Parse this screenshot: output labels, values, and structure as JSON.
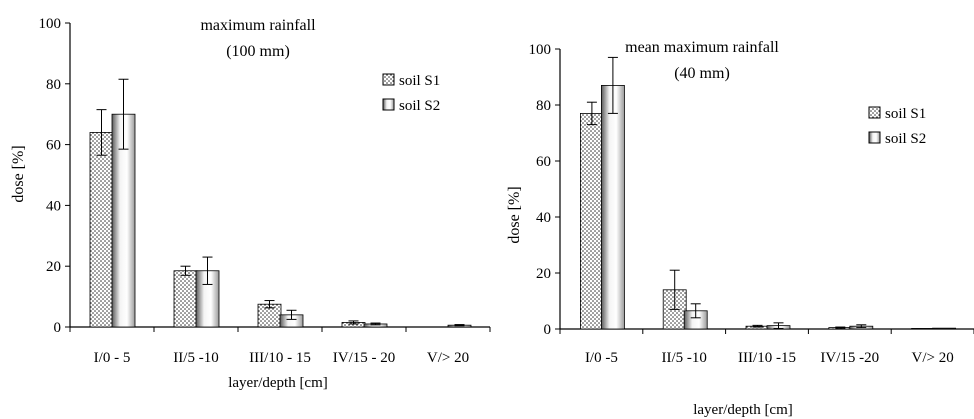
{
  "chart_data": [
    {
      "type": "bar",
      "title": "maximum rainfall",
      "subtitle": "(100 mm)",
      "xlabel": "layer/depth [cm]",
      "ylabel": "dose [%]",
      "ylim": [
        0,
        100
      ],
      "yticks": [
        0,
        20,
        40,
        60,
        80,
        100
      ],
      "categories": [
        "I/0 - 5",
        "II/5 -10",
        "III/10 - 15",
        "IV/15 - 20",
        "V/> 20"
      ],
      "series": [
        {
          "name": "soil S1",
          "pattern": "dotted",
          "values": [
            64,
            18.5,
            7.5,
            1.5,
            0
          ],
          "errors": [
            7.5,
            1.5,
            1.2,
            0.5,
            0
          ]
        },
        {
          "name": "soil S2",
          "pattern": "gradient",
          "values": [
            70,
            18.5,
            4,
            1,
            0.6
          ],
          "errors": [
            11.5,
            4.5,
            1.5,
            0.3,
            0.2
          ]
        }
      ],
      "legend_position": "top-right",
      "grid": false
    },
    {
      "type": "bar",
      "title": "mean maximum rainfall",
      "subtitle": "(40 mm)",
      "xlabel": "layer/depth [cm]",
      "ylabel": "dose [%]",
      "ylim": [
        0,
        100
      ],
      "yticks": [
        0,
        20,
        40,
        60,
        80,
        100
      ],
      "categories": [
        "I/0 -5",
        "II/5 -10",
        "III/10 -15",
        "IV/15 -20",
        "V/> 20"
      ],
      "series": [
        {
          "name": "soil S1",
          "pattern": "dotted",
          "values": [
            77,
            14,
            1,
            0.5,
            0.2
          ],
          "errors": [
            4,
            7,
            0.3,
            0.2,
            0
          ]
        },
        {
          "name": "soil S2",
          "pattern": "gradient",
          "values": [
            87,
            6.5,
            1.2,
            1,
            0.3
          ],
          "errors": [
            10,
            2.5,
            1,
            0.5,
            0
          ]
        }
      ],
      "legend_position": "right",
      "grid": false
    }
  ]
}
